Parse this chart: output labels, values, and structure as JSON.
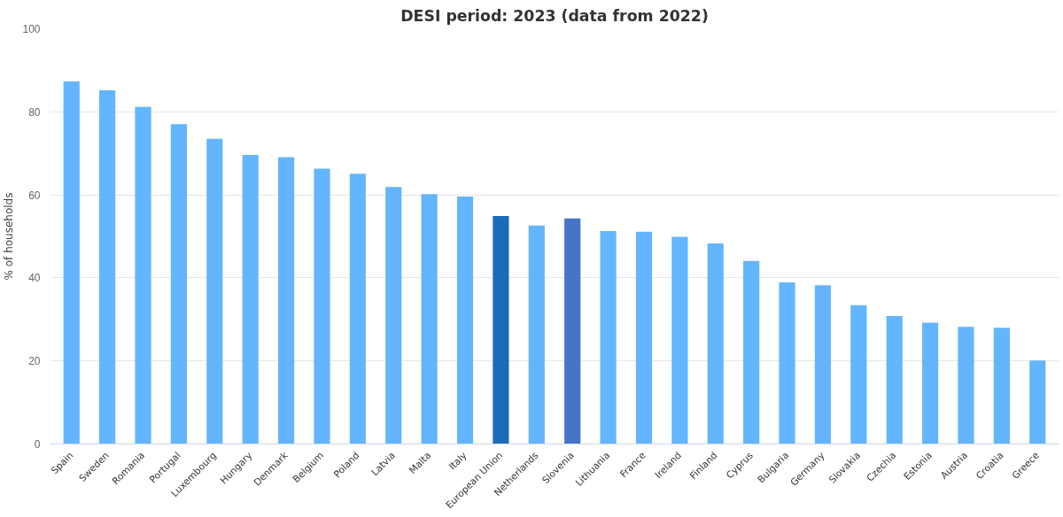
{
  "chart_data": {
    "type": "bar",
    "title": "DESI period: 2023 (data from 2022)",
    "ylabel": "% of households",
    "categories": [
      "Spain",
      "Sweden",
      "Romania",
      "Portugal",
      "Luxembourg",
      "Hungary",
      "Denmark",
      "Belgium",
      "Poland",
      "Latvia",
      "Malta",
      "Italy",
      "European Union",
      "Netherlands",
      "Slovenia",
      "Lithuania",
      "France",
      "Ireland",
      "Finland",
      "Cyprus",
      "Bulgaria",
      "Germany",
      "Slovakia",
      "Czechia",
      "Estonia",
      "Austria",
      "Croatia",
      "Greece"
    ],
    "values": [
      87.3,
      85.2,
      81.2,
      77.0,
      73.5,
      69.6,
      69.1,
      66.3,
      65.1,
      61.9,
      60.2,
      59.6,
      54.9,
      52.6,
      54.3,
      51.3,
      51.1,
      49.9,
      48.3,
      44.1,
      38.9,
      38.2,
      33.4,
      30.8,
      29.2,
      28.2,
      28.0,
      20.1
    ],
    "colors": [
      "#63b5fe",
      "#63b5fe",
      "#63b5fe",
      "#63b5fe",
      "#63b5fe",
      "#63b5fe",
      "#63b5fe",
      "#63b5fe",
      "#63b5fe",
      "#63b5fe",
      "#63b5fe",
      "#63b5fe",
      "#1b6cb8",
      "#63b5fe",
      "#4674c9",
      "#63b5fe",
      "#63b5fe",
      "#63b5fe",
      "#63b5fe",
      "#63b5fe",
      "#63b5fe",
      "#63b5fe",
      "#63b5fe",
      "#63b5fe",
      "#63b5fe",
      "#63b5fe",
      "#63b5fe",
      "#63b5fe"
    ],
    "ylim": [
      0,
      100
    ],
    "yticks": [
      0,
      20,
      40,
      60,
      80,
      100
    ],
    "grid": "y"
  }
}
